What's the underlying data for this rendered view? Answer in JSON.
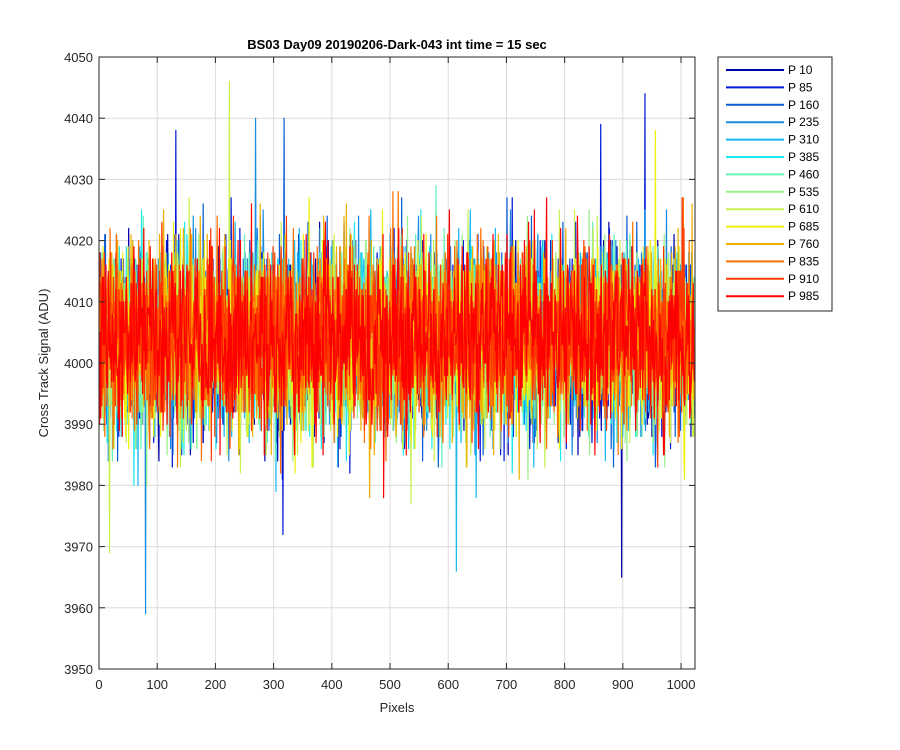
{
  "chart_data": {
    "type": "line",
    "title": "BS03 Day09 20190206-Dark-043 int time = 15 sec",
    "xlabel": "Pixels",
    "ylabel": "Cross Track Signal (ADU)",
    "xlim": [
      0,
      1024
    ],
    "ylim": [
      3950,
      4050
    ],
    "xticks": [
      "0",
      "100",
      "200",
      "300",
      "400",
      "500",
      "600",
      "700",
      "800",
      "900",
      "1000"
    ],
    "yticks": [
      "3950",
      "3960",
      "3970",
      "3980",
      "3990",
      "4000",
      "4010",
      "4020",
      "4030",
      "4040",
      "4050"
    ],
    "grid": true,
    "legend_position": "outside-top-right",
    "n_pixels": 1024,
    "mean_level": 4004,
    "typical_range": [
      3985,
      4025
    ],
    "notable_extremes": [
      {
        "series": "P 235",
        "x": 80,
        "y": 3959
      },
      {
        "series": "P 10",
        "x": 898,
        "y": 3965
      },
      {
        "series": "P 310",
        "x": 614,
        "y": 3966
      },
      {
        "series": "P 610",
        "x": 224,
        "y": 4046
      },
      {
        "series": "P 85",
        "x": 938,
        "y": 4044
      },
      {
        "series": "P 235",
        "x": 269,
        "y": 4040
      },
      {
        "series": "P 160",
        "x": 318,
        "y": 4040
      },
      {
        "series": "P 85",
        "x": 862,
        "y": 4039
      },
      {
        "series": "P 85",
        "x": 132,
        "y": 4038
      },
      {
        "series": "P 685",
        "x": 956,
        "y": 4038
      },
      {
        "series": "P 85",
        "x": 316,
        "y": 3972
      },
      {
        "series": "P 610",
        "x": 18,
        "y": 3969
      }
    ],
    "series": [
      {
        "name": "P 10",
        "color": "#0000A8"
      },
      {
        "name": "P 85",
        "color": "#0018D8"
      },
      {
        "name": "P 160",
        "color": "#0A5CD6"
      },
      {
        "name": "P 235",
        "color": "#1A8CE0"
      },
      {
        "name": "P 310",
        "color": "#18B8F0"
      },
      {
        "name": "P 385",
        "color": "#1EE8EC"
      },
      {
        "name": "P 460",
        "color": "#64F0B8"
      },
      {
        "name": "P 535",
        "color": "#98F088"
      },
      {
        "name": "P 610",
        "color": "#C8F050"
      },
      {
        "name": "P 685",
        "color": "#F0F010"
      },
      {
        "name": "P 760",
        "color": "#F0B000"
      },
      {
        "name": "P 835",
        "color": "#FF7000"
      },
      {
        "name": "P 910",
        "color": "#FF3800"
      },
      {
        "name": "P 985",
        "color": "#FF0000"
      }
    ]
  }
}
